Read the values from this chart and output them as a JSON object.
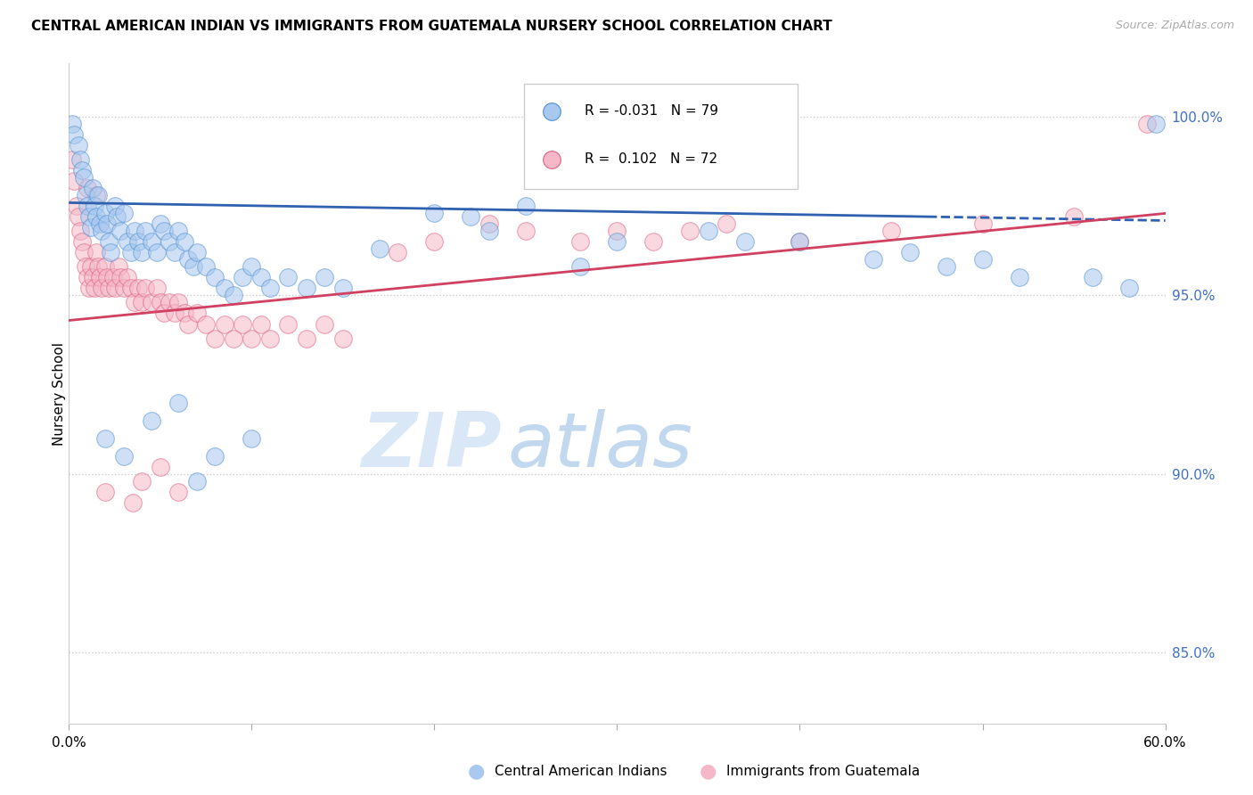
{
  "title": "CENTRAL AMERICAN INDIAN VS IMMIGRANTS FROM GUATEMALA NURSERY SCHOOL CORRELATION CHART",
  "source": "Source: ZipAtlas.com",
  "ylabel": "Nursery School",
  "x_min": 0.0,
  "x_max": 60.0,
  "y_min": 83.0,
  "y_max": 101.5,
  "x_ticks": [
    0.0,
    10.0,
    20.0,
    30.0,
    40.0,
    50.0,
    60.0
  ],
  "x_tick_labels": [
    "0.0%",
    "",
    "",
    "",
    "",
    "",
    "60.0%"
  ],
  "y_ticks": [
    85.0,
    90.0,
    95.0,
    100.0
  ],
  "y_tick_labels": [
    "85.0%",
    "90.0%",
    "95.0%",
    "100.0%"
  ],
  "blue_color": "#a8c8f0",
  "pink_color": "#f5b8c8",
  "blue_edge_color": "#5090d0",
  "pink_edge_color": "#e06080",
  "blue_line_color": "#3060b0",
  "pink_line_color": "#d04060",
  "watermark_zip": "ZIP",
  "watermark_atlas": "atlas",
  "bottom_legend_blue": "Central American Indians",
  "bottom_legend_pink": "Immigrants from Guatemala",
  "blue_trend_x0": 0.0,
  "blue_trend_y0": 97.6,
  "blue_trend_x1": 60.0,
  "blue_trend_y1": 97.1,
  "blue_dash_start": 47.0,
  "pink_trend_x0": 0.0,
  "pink_trend_y0": 94.3,
  "pink_trend_x1": 60.0,
  "pink_trend_y1": 97.3,
  "blue_scatter": [
    [
      0.2,
      99.8
    ],
    [
      0.3,
      99.5
    ],
    [
      0.5,
      99.2
    ],
    [
      0.6,
      98.8
    ],
    [
      0.7,
      98.5
    ],
    [
      0.8,
      98.3
    ],
    [
      0.9,
      97.8
    ],
    [
      1.0,
      97.5
    ],
    [
      1.1,
      97.2
    ],
    [
      1.2,
      96.9
    ],
    [
      1.3,
      98.0
    ],
    [
      1.4,
      97.5
    ],
    [
      1.5,
      97.2
    ],
    [
      1.6,
      97.8
    ],
    [
      1.7,
      97.0
    ],
    [
      1.8,
      96.8
    ],
    [
      2.0,
      97.3
    ],
    [
      2.1,
      97.0
    ],
    [
      2.2,
      96.5
    ],
    [
      2.3,
      96.2
    ],
    [
      2.5,
      97.5
    ],
    [
      2.6,
      97.2
    ],
    [
      2.8,
      96.8
    ],
    [
      3.0,
      97.3
    ],
    [
      3.2,
      96.5
    ],
    [
      3.4,
      96.2
    ],
    [
      3.6,
      96.8
    ],
    [
      3.8,
      96.5
    ],
    [
      4.0,
      96.2
    ],
    [
      4.2,
      96.8
    ],
    [
      4.5,
      96.5
    ],
    [
      4.8,
      96.2
    ],
    [
      5.0,
      97.0
    ],
    [
      5.2,
      96.8
    ],
    [
      5.5,
      96.5
    ],
    [
      5.8,
      96.2
    ],
    [
      6.0,
      96.8
    ],
    [
      6.3,
      96.5
    ],
    [
      6.5,
      96.0
    ],
    [
      6.8,
      95.8
    ],
    [
      7.0,
      96.2
    ],
    [
      7.5,
      95.8
    ],
    [
      8.0,
      95.5
    ],
    [
      8.5,
      95.2
    ],
    [
      9.0,
      95.0
    ],
    [
      9.5,
      95.5
    ],
    [
      10.0,
      95.8
    ],
    [
      10.5,
      95.5
    ],
    [
      11.0,
      95.2
    ],
    [
      12.0,
      95.5
    ],
    [
      13.0,
      95.2
    ],
    [
      14.0,
      95.5
    ],
    [
      15.0,
      95.2
    ],
    [
      2.0,
      91.0
    ],
    [
      3.0,
      90.5
    ],
    [
      4.5,
      91.5
    ],
    [
      6.0,
      92.0
    ],
    [
      7.0,
      89.8
    ],
    [
      8.0,
      90.5
    ],
    [
      10.0,
      91.0
    ],
    [
      20.0,
      97.3
    ],
    [
      23.0,
      96.8
    ],
    [
      25.0,
      97.5
    ],
    [
      30.0,
      96.5
    ],
    [
      35.0,
      96.8
    ],
    [
      37.0,
      96.5
    ],
    [
      40.0,
      96.5
    ],
    [
      44.0,
      96.0
    ],
    [
      46.0,
      96.2
    ],
    [
      48.0,
      95.8
    ],
    [
      50.0,
      96.0
    ],
    [
      52.0,
      95.5
    ],
    [
      56.0,
      95.5
    ],
    [
      58.0,
      95.2
    ],
    [
      59.5,
      99.8
    ],
    [
      17.0,
      96.3
    ],
    [
      22.0,
      97.2
    ],
    [
      28.0,
      95.8
    ]
  ],
  "pink_scatter": [
    [
      0.2,
      98.8
    ],
    [
      0.3,
      98.2
    ],
    [
      0.4,
      97.5
    ],
    [
      0.5,
      97.2
    ],
    [
      0.6,
      96.8
    ],
    [
      0.7,
      96.5
    ],
    [
      0.8,
      96.2
    ],
    [
      0.9,
      95.8
    ],
    [
      1.0,
      95.5
    ],
    [
      1.1,
      95.2
    ],
    [
      1.2,
      95.8
    ],
    [
      1.3,
      95.5
    ],
    [
      1.4,
      95.2
    ],
    [
      1.5,
      96.2
    ],
    [
      1.6,
      95.8
    ],
    [
      1.7,
      95.5
    ],
    [
      1.8,
      95.2
    ],
    [
      2.0,
      95.8
    ],
    [
      2.1,
      95.5
    ],
    [
      2.2,
      95.2
    ],
    [
      2.4,
      95.5
    ],
    [
      2.5,
      95.2
    ],
    [
      2.7,
      95.8
    ],
    [
      2.8,
      95.5
    ],
    [
      3.0,
      95.2
    ],
    [
      3.2,
      95.5
    ],
    [
      3.4,
      95.2
    ],
    [
      3.6,
      94.8
    ],
    [
      3.8,
      95.2
    ],
    [
      4.0,
      94.8
    ],
    [
      4.2,
      95.2
    ],
    [
      4.5,
      94.8
    ],
    [
      4.8,
      95.2
    ],
    [
      5.0,
      94.8
    ],
    [
      5.2,
      94.5
    ],
    [
      5.5,
      94.8
    ],
    [
      5.8,
      94.5
    ],
    [
      6.0,
      94.8
    ],
    [
      6.3,
      94.5
    ],
    [
      6.5,
      94.2
    ],
    [
      7.0,
      94.5
    ],
    [
      7.5,
      94.2
    ],
    [
      8.0,
      93.8
    ],
    [
      8.5,
      94.2
    ],
    [
      9.0,
      93.8
    ],
    [
      9.5,
      94.2
    ],
    [
      10.0,
      93.8
    ],
    [
      10.5,
      94.2
    ],
    [
      11.0,
      93.8
    ],
    [
      12.0,
      94.2
    ],
    [
      13.0,
      93.8
    ],
    [
      14.0,
      94.2
    ],
    [
      15.0,
      93.8
    ],
    [
      2.0,
      89.5
    ],
    [
      3.5,
      89.2
    ],
    [
      4.0,
      89.8
    ],
    [
      5.0,
      90.2
    ],
    [
      6.0,
      89.5
    ],
    [
      18.0,
      96.2
    ],
    [
      20.0,
      96.5
    ],
    [
      23.0,
      97.0
    ],
    [
      25.0,
      96.8
    ],
    [
      28.0,
      96.5
    ],
    [
      30.0,
      96.8
    ],
    [
      32.0,
      96.5
    ],
    [
      34.0,
      96.8
    ],
    [
      36.0,
      97.0
    ],
    [
      40.0,
      96.5
    ],
    [
      45.0,
      96.8
    ],
    [
      50.0,
      97.0
    ],
    [
      55.0,
      97.2
    ],
    [
      59.0,
      99.8
    ],
    [
      1.0,
      98.0
    ],
    [
      1.5,
      97.8
    ]
  ]
}
